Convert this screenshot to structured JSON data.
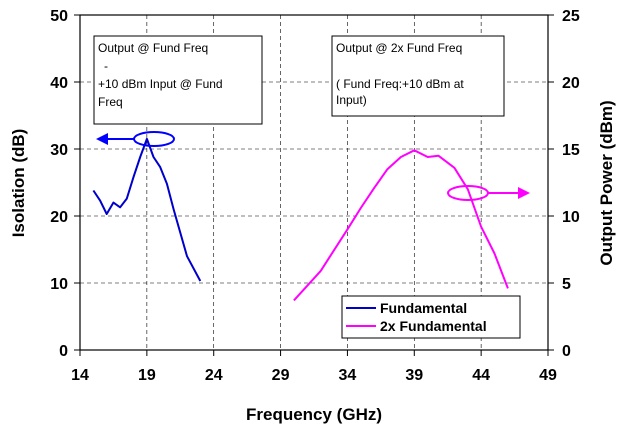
{
  "chart_data": {
    "type": "line",
    "xlabel": "Frequency (GHz)",
    "ylabel": "Isolation (dB)",
    "y2label": "Output Power (dBm)",
    "xlim": [
      14,
      49
    ],
    "ylim": [
      0,
      50
    ],
    "y2lim": [
      0,
      25
    ],
    "xticks": [
      14,
      19,
      24,
      29,
      34,
      39,
      44,
      49
    ],
    "yticks": [
      0,
      10,
      20,
      30,
      40,
      50
    ],
    "y2ticks": [
      0,
      5,
      10,
      15,
      20,
      25
    ],
    "grid": true,
    "legend_position": "bottom-right",
    "series": [
      {
        "name": "Fundamental",
        "axis": "left",
        "color": "#0000cc",
        "x": [
          15.0,
          15.5,
          16.0,
          16.5,
          17.0,
          17.5,
          18.0,
          18.5,
          19.0,
          19.5,
          20.0,
          20.5,
          21.0,
          22.0,
          23.0
        ],
        "y": [
          23.8,
          22.3,
          20.3,
          22.0,
          21.3,
          22.6,
          25.8,
          28.8,
          31.5,
          28.8,
          27.3,
          24.8,
          21.0,
          14.0,
          10.3
        ]
      },
      {
        "name": "2x Fundamental",
        "axis": "right",
        "color": "#ff00ff",
        "x": [
          30.0,
          32.0,
          34.0,
          35.0,
          36.0,
          37.0,
          38.0,
          39.0,
          40.0,
          40.8,
          42.0,
          43.0,
          44.0,
          45.0,
          46.0
        ],
        "y": [
          3.7,
          5.9,
          9.0,
          10.6,
          12.1,
          13.5,
          14.4,
          14.9,
          14.4,
          14.5,
          13.6,
          12.0,
          9.2,
          7.2,
          4.6
        ]
      }
    ],
    "annotations": [
      {
        "lines": [
          "Output @ Fund Freq",
          "-",
          "+10 dBm Input @ Fund",
          "Freq"
        ]
      },
      {
        "lines": [
          "Output @ 2x Fund Freq",
          "( Fund Freq:+10 dBm at",
          "Input)"
        ]
      }
    ]
  }
}
